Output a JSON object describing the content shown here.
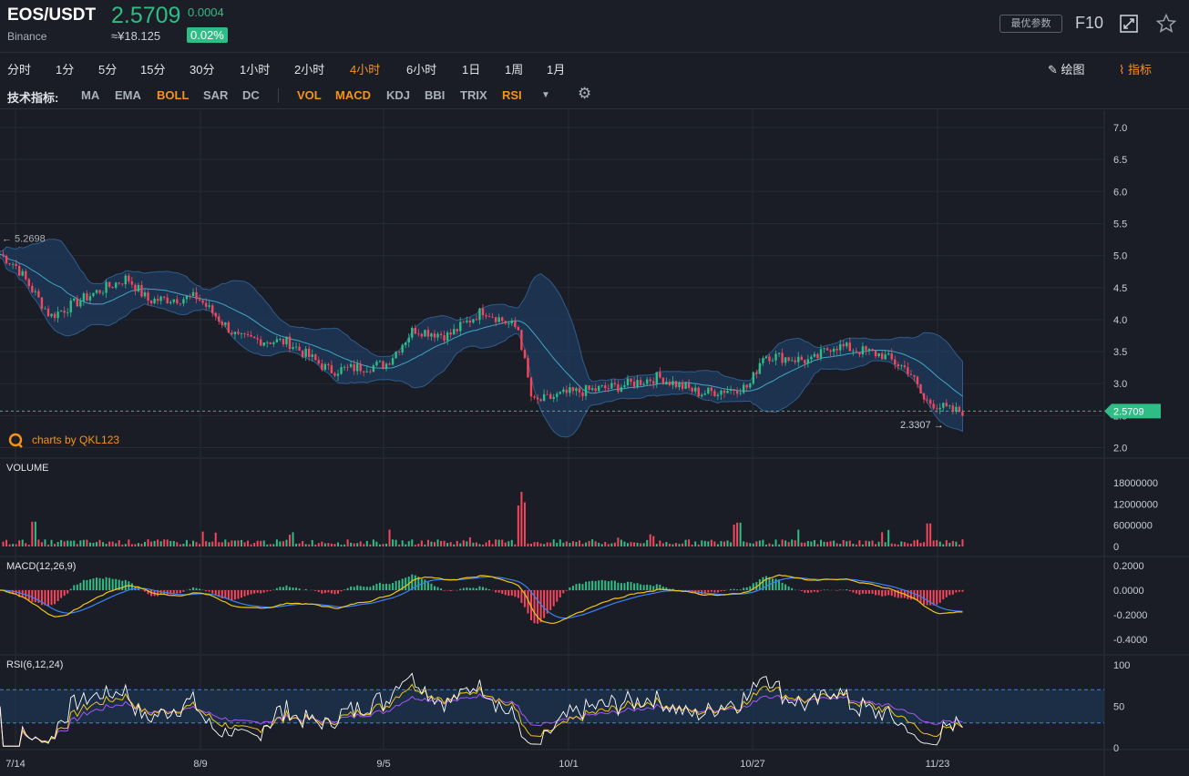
{
  "header": {
    "pair": "EOS/USDT",
    "exchange": "Binance",
    "price": "2.5709",
    "change": "0.0004",
    "cny": "≈¥18.125",
    "change_pct": "0.02%",
    "param_button": "最优参数",
    "f10": "F10",
    "expand_icon": "expand-icon",
    "star_icon": "star-icon"
  },
  "timeframes": [
    {
      "label": "分时",
      "active": false
    },
    {
      "label": "1分",
      "active": false
    },
    {
      "label": "5分",
      "active": false
    },
    {
      "label": "15分",
      "active": false
    },
    {
      "label": "30分",
      "active": false
    },
    {
      "label": "1小时",
      "active": false
    },
    {
      "label": "2小时",
      "active": false
    },
    {
      "label": "4小时",
      "active": true
    },
    {
      "label": "6小时",
      "active": false
    },
    {
      "label": "1日",
      "active": false
    },
    {
      "label": "1周",
      "active": false
    },
    {
      "label": "1月",
      "active": false
    }
  ],
  "tools": {
    "draw": "绘图",
    "indicators": "指标"
  },
  "indicator_bar": {
    "label": "技术指标:",
    "main": [
      {
        "label": "MA",
        "on": false
      },
      {
        "label": "EMA",
        "on": false
      },
      {
        "label": "BOLL",
        "on": true
      },
      {
        "label": "SAR",
        "on": false
      },
      {
        "label": "DC",
        "on": false
      }
    ],
    "sub": [
      {
        "label": "VOL",
        "on": true
      },
      {
        "label": "MACD",
        "on": true
      },
      {
        "label": "KDJ",
        "on": false
      },
      {
        "label": "BBI",
        "on": false
      },
      {
        "label": "TRIX",
        "on": false
      },
      {
        "label": "RSI",
        "on": true
      }
    ]
  },
  "colors": {
    "up": "#2ebd85",
    "down": "#f6465d",
    "accent": "#f7931a",
    "boll_band": "#1e3a5c",
    "boll_mid": "#3fa7c7",
    "macd_dif": "#f0c419",
    "macd_dea": "#3b82f6",
    "rsi6": "#ffffff",
    "rsi12": "#f0c419",
    "rsi24": "#a855f7"
  },
  "chart_data": {
    "type": "candlestick",
    "watermark": "charts by QKL123",
    "x_ticks": [
      "7/14",
      "8/9",
      "9/5",
      "10/1",
      "10/27",
      "11/23"
    ],
    "main": {
      "y_ticks": [
        "7.0",
        "6.5",
        "6.0",
        "5.5",
        "5.0",
        "4.5",
        "4.0",
        "3.5",
        "3.0",
        "2.5",
        "2.0"
      ],
      "ylim": [
        2.0,
        7.0
      ],
      "last_price": "2.5709",
      "high_marker": "5.2698",
      "low_marker": "2.3307",
      "trend_keypoints": [
        {
          "x": "7/14",
          "y": 4.85
        },
        {
          "x": "7/19",
          "y": 4.05
        },
        {
          "x": "7/25",
          "y": 4.4
        },
        {
          "x": "7/30",
          "y": 4.65
        },
        {
          "x": "8/2",
          "y": 4.3
        },
        {
          "x": "8/9",
          "y": 4.35
        },
        {
          "x": "8/15",
          "y": 3.7
        },
        {
          "x": "8/22",
          "y": 3.65
        },
        {
          "x": "8/28",
          "y": 3.2
        },
        {
          "x": "9/5",
          "y": 3.3
        },
        {
          "x": "9/9",
          "y": 3.85
        },
        {
          "x": "9/14",
          "y": 3.75
        },
        {
          "x": "9/19",
          "y": 4.15
        },
        {
          "x": "9/24",
          "y": 3.85
        },
        {
          "x": "9/26",
          "y": 2.7
        },
        {
          "x": "10/1",
          "y": 2.85
        },
        {
          "x": "10/8",
          "y": 2.95
        },
        {
          "x": "10/14",
          "y": 3.1
        },
        {
          "x": "10/20",
          "y": 2.85
        },
        {
          "x": "10/27",
          "y": 2.95
        },
        {
          "x": "10/29",
          "y": 3.45
        },
        {
          "x": "11/5",
          "y": 3.35
        },
        {
          "x": "11/8",
          "y": 3.6
        },
        {
          "x": "11/15",
          "y": 3.45
        },
        {
          "x": "11/19",
          "y": 3.2
        },
        {
          "x": "11/21",
          "y": 2.75
        },
        {
          "x": "11/25",
          "y": 2.57
        }
      ]
    },
    "volume": {
      "title": "VOLUME",
      "y_ticks": [
        "18000000",
        "12000000",
        "6000000",
        "0"
      ],
      "ylim": [
        0,
        18000000
      ]
    },
    "macd": {
      "title": "MACD(12,26,9)",
      "y_ticks": [
        "0.2000",
        "0.0000",
        "-0.2000",
        "-0.4000"
      ],
      "ylim": [
        -0.45,
        0.22
      ]
    },
    "rsi": {
      "title": "RSI(6,12,24)",
      "y_ticks": [
        "100",
        "50",
        "0"
      ],
      "ylim": [
        0,
        100
      ],
      "bands": [
        30,
        70
      ]
    }
  }
}
